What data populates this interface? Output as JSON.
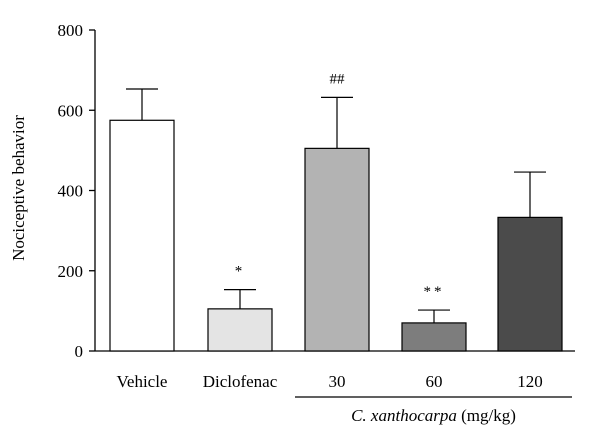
{
  "chart_data": {
    "type": "bar",
    "categories": [
      "Vehicle",
      "Diclofenac",
      "30",
      "60",
      "120"
    ],
    "values": [
      575,
      105,
      505,
      70,
      333
    ],
    "errors": [
      78,
      48,
      127,
      32,
      113
    ],
    "significance": [
      "",
      "*",
      "##",
      "**",
      ""
    ],
    "colors": [
      "#ffffff",
      "#e4e4e4",
      "#b3b3b3",
      "#7d7d7d",
      "#4b4b4b"
    ],
    "ylabel": "Nociceptive behavior",
    "ylim": [
      0,
      800
    ],
    "yticks": [
      0,
      200,
      400,
      600,
      800
    ],
    "group_label": {
      "species": "C. xanthocarpa",
      "unit": " (mg/kg)",
      "categories": [
        "30",
        "60",
        "120"
      ]
    },
    "grid": false,
    "legend": "none"
  }
}
